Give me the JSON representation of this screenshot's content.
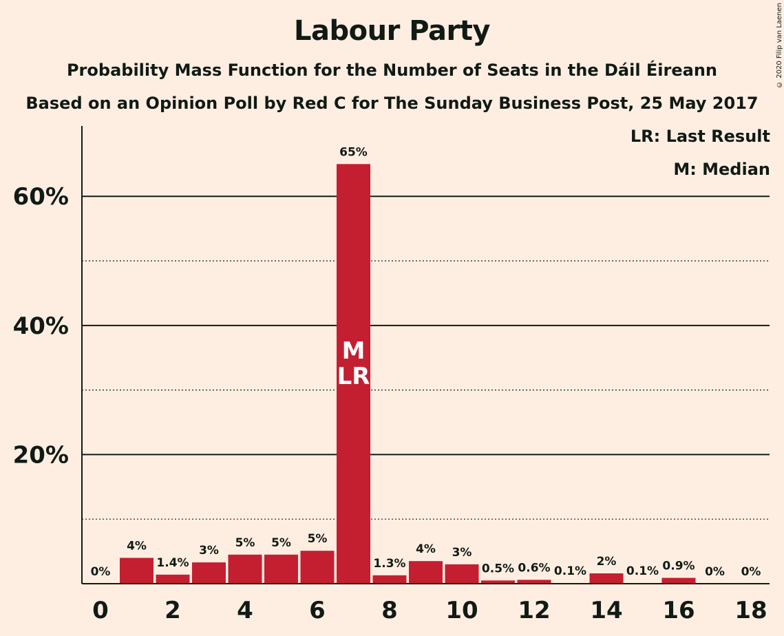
{
  "header": {
    "title": "Labour Party",
    "subtitle": "Probability Mass Function for the Number of Seats in the Dáil Éireann",
    "subtitle2": "Based on an Opinion Poll by Red C for The Sunday Business Post, 25 May 2017",
    "copyright": "© 2020 Filip van Laenen"
  },
  "legend": {
    "last_result": "LR: Last Result",
    "median": "M: Median"
  },
  "colors": {
    "background": "#feeee2",
    "bar": "#c41f30",
    "text": "#111a14"
  },
  "chart_data": {
    "type": "bar",
    "title": "Labour Party",
    "categories": [
      0,
      1,
      2,
      3,
      4,
      5,
      6,
      7,
      8,
      9,
      10,
      11,
      12,
      13,
      14,
      15,
      16,
      17,
      18
    ],
    "values": [
      0,
      4.0,
      1.4,
      3.3,
      4.5,
      4.5,
      5.1,
      65,
      1.3,
      3.5,
      3.0,
      0.5,
      0.6,
      0.1,
      1.6,
      0.1,
      0.9,
      0,
      0
    ],
    "value_labels": [
      "0%",
      "4%",
      "1.4%",
      "3%",
      "5%",
      "5%",
      "5%",
      "65%",
      "1.3%",
      "4%",
      "3%",
      "0.5%",
      "0.6%",
      "0.1%",
      "2%",
      "0.1%",
      "0.9%",
      "0%",
      "0%"
    ],
    "x_tick_labels": [
      "0",
      "2",
      "4",
      "6",
      "8",
      "10",
      "12",
      "14",
      "16",
      "18"
    ],
    "y_tick_labels": [
      "20%",
      "40%",
      "60%"
    ],
    "y_ticks": [
      20,
      40,
      60
    ],
    "y_minor_gridlines": [
      10,
      30,
      50
    ],
    "ylim": [
      0,
      70.9
    ],
    "median_seat": 7,
    "last_result_seat": 7,
    "bar_annotations": [
      "M",
      "LR"
    ],
    "grid": true,
    "legend_position": "top-right"
  }
}
